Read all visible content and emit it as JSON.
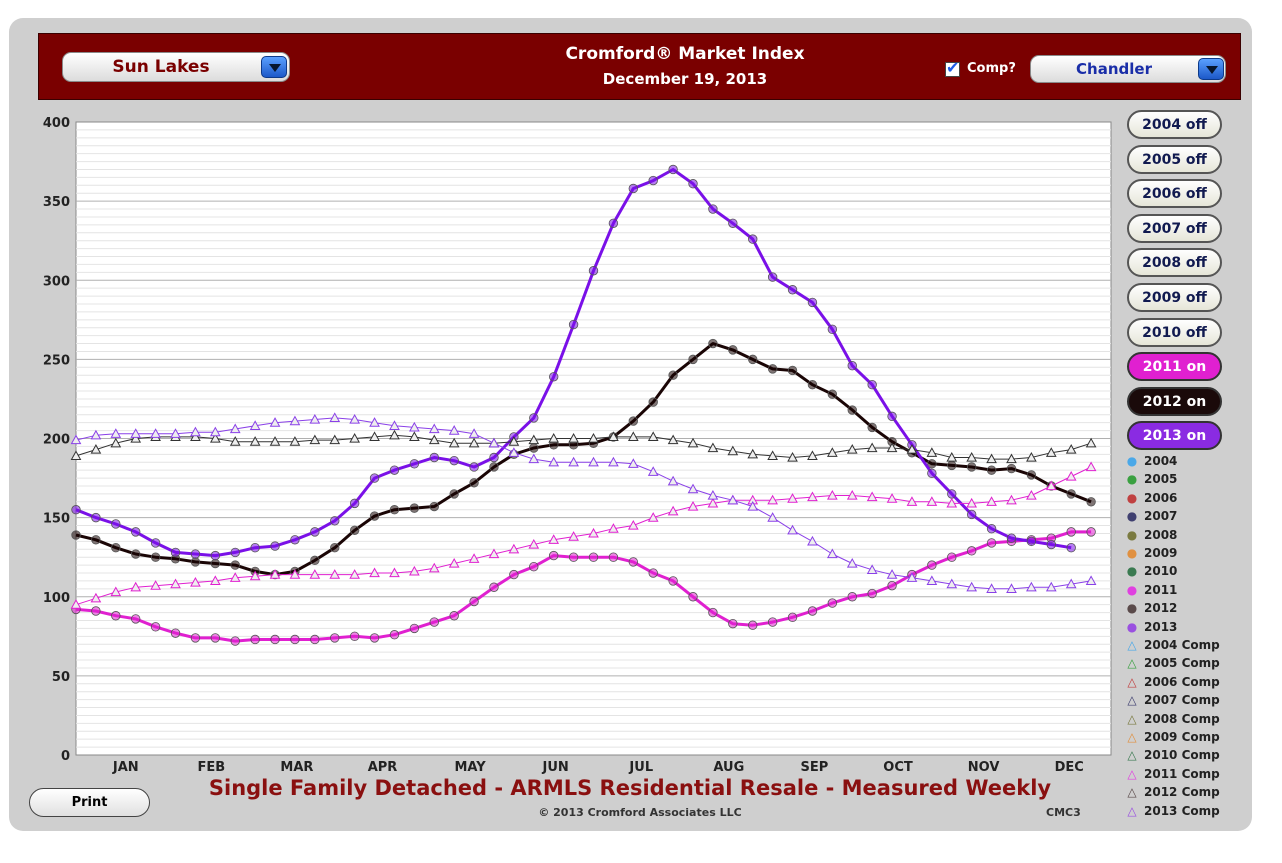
{
  "header": {
    "area_select": "Sun Lakes",
    "title": "Cromford® Market Index",
    "date": "December 19, 2013",
    "comp_label": "Comp?",
    "comp_checked": true,
    "comp_select": "Chandler"
  },
  "year_toggles": [
    {
      "label": "2004 off",
      "state": "off"
    },
    {
      "label": "2005 off",
      "state": "off"
    },
    {
      "label": "2006 off",
      "state": "off"
    },
    {
      "label": "2007 off",
      "state": "off"
    },
    {
      "label": "2008 off",
      "state": "off"
    },
    {
      "label": "2009 off",
      "state": "off"
    },
    {
      "label": "2010 off",
      "state": "off"
    },
    {
      "label": "2011 on",
      "state": "on",
      "color": "#e020d0"
    },
    {
      "label": "2012 on",
      "state": "on",
      "color": "#1a0a0a"
    },
    {
      "label": "2013 on",
      "state": "on",
      "color": "#8a2be2"
    }
  ],
  "legend": [
    {
      "label": "2004",
      "marker": "circle",
      "color": "#4aa8e8"
    },
    {
      "label": "2005",
      "marker": "circle",
      "color": "#3aa040"
    },
    {
      "label": "2006",
      "marker": "circle",
      "color": "#c04040"
    },
    {
      "label": "2007",
      "marker": "circle",
      "color": "#404070"
    },
    {
      "label": "2008",
      "marker": "circle",
      "color": "#7a7a40"
    },
    {
      "label": "2009",
      "marker": "circle",
      "color": "#e09040"
    },
    {
      "label": "2010",
      "marker": "circle",
      "color": "#3a7a50"
    },
    {
      "label": "2011",
      "marker": "circle",
      "color": "#e040e0"
    },
    {
      "label": "2012",
      "marker": "circle",
      "color": "#5a4a4a"
    },
    {
      "label": "2013",
      "marker": "circle",
      "color": "#9a50e0"
    },
    {
      "label": "2004 Comp",
      "marker": "triangle",
      "color": "#4aa8e8"
    },
    {
      "label": "2005 Comp",
      "marker": "triangle",
      "color": "#3aa040"
    },
    {
      "label": "2006 Comp",
      "marker": "triangle",
      "color": "#c04040"
    },
    {
      "label": "2007 Comp",
      "marker": "triangle",
      "color": "#404070"
    },
    {
      "label": "2008 Comp",
      "marker": "triangle",
      "color": "#7a7a40"
    },
    {
      "label": "2009 Comp",
      "marker": "triangle",
      "color": "#e09040"
    },
    {
      "label": "2010 Comp",
      "marker": "triangle",
      "color": "#3a7a50"
    },
    {
      "label": "2011 Comp",
      "marker": "triangle",
      "color": "#e040e0"
    },
    {
      "label": "2012 Comp",
      "marker": "triangle",
      "color": "#5a4a4a"
    },
    {
      "label": "2013 Comp",
      "marker": "triangle",
      "color": "#9a50e0"
    }
  ],
  "footer": {
    "print_label": "Print",
    "chart_subtitle": "Single Family Detached - ARMLS Residential Resale - Measured Weekly",
    "copyright": "© 2013 Cromford Associates LLC",
    "code": "CMC3"
  },
  "chart_data": {
    "type": "line",
    "title": "Cromford® Market Index",
    "subtitle": "Single Family Detached - ARMLS Residential Resale - Measured Weekly",
    "x_axis": {
      "type": "week",
      "min": 1,
      "max": 53,
      "month_labels": [
        "JAN",
        "FEB",
        "MAR",
        "APR",
        "MAY",
        "JUN",
        "JUL",
        "AUG",
        "SEP",
        "OCT",
        "NOV",
        "DEC"
      ],
      "month_label_weeks": [
        3.5,
        7.8,
        12.1,
        16.4,
        20.8,
        25.1,
        29.4,
        33.8,
        38.1,
        42.3,
        46.6,
        50.9
      ]
    },
    "y_axis": {
      "min": 0,
      "max": 400,
      "ticks": [
        0,
        50,
        100,
        150,
        200,
        250,
        300,
        350,
        400
      ]
    },
    "grid": true,
    "series": [
      {
        "name": "2011",
        "color": "#e020d0",
        "width": 3,
        "marker": "circle",
        "values": [
          92,
          91,
          88,
          86,
          81,
          77,
          74,
          74,
          72,
          73,
          73,
          73,
          73,
          74,
          75,
          74,
          76,
          80,
          84,
          88,
          97,
          106,
          114,
          119,
          126,
          125,
          125,
          125,
          122,
          115,
          110,
          100,
          90,
          83,
          82,
          84,
          87,
          91,
          96,
          100,
          102,
          107,
          114,
          120,
          125,
          129,
          134,
          135,
          136,
          137,
          141,
          141
        ]
      },
      {
        "name": "2012",
        "color": "#1a0505",
        "width": 3,
        "marker": "circle",
        "values": [
          139,
          136,
          131,
          127,
          125,
          124,
          122,
          121,
          120,
          116,
          114,
          116,
          123,
          131,
          142,
          151,
          155,
          156,
          157,
          165,
          172,
          182,
          190,
          194,
          196,
          196,
          197,
          201,
          211,
          223,
          240,
          250,
          260,
          256,
          250,
          244,
          243,
          234,
          228,
          218,
          207,
          198,
          191,
          184,
          183,
          182,
          180,
          181,
          177,
          170,
          165,
          160
        ]
      },
      {
        "name": "2013",
        "color": "#7a10e8",
        "width": 3,
        "marker": "circle",
        "values": [
          155,
          150,
          146,
          141,
          134,
          128,
          127,
          126,
          128,
          131,
          132,
          136,
          141,
          148,
          159,
          175,
          180,
          184,
          188,
          186,
          182,
          188,
          201,
          213,
          239,
          272,
          306,
          336,
          358,
          363,
          370,
          361,
          345,
          336,
          326,
          302,
          294,
          286,
          269,
          246,
          234,
          214,
          196,
          178,
          165,
          152,
          143,
          137,
          135,
          133,
          131
        ]
      },
      {
        "name": "2011 Comp",
        "color": "#e020d0",
        "width": 1,
        "marker": "triangle",
        "values": [
          95,
          99,
          103,
          106,
          107,
          108,
          109,
          110,
          112,
          113,
          114,
          114,
          114,
          114,
          114,
          115,
          115,
          116,
          118,
          121,
          124,
          127,
          130,
          133,
          136,
          138,
          140,
          143,
          145,
          150,
          154,
          157,
          159,
          161,
          161,
          161,
          162,
          163,
          164,
          164,
          163,
          162,
          160,
          160,
          159,
          159,
          160,
          161,
          164,
          170,
          176,
          182
        ]
      },
      {
        "name": "2012 Comp",
        "color": "#333333",
        "width": 1,
        "marker": "triangle",
        "values": [
          189,
          193,
          197,
          200,
          201,
          201,
          201,
          200,
          198,
          198,
          198,
          198,
          199,
          199,
          200,
          201,
          202,
          201,
          199,
          197,
          197,
          197,
          198,
          199,
          200,
          200,
          200,
          201,
          201,
          201,
          199,
          197,
          194,
          192,
          190,
          189,
          188,
          189,
          191,
          193,
          194,
          194,
          193,
          191,
          188,
          188,
          187,
          187,
          188,
          191,
          193,
          197
        ]
      },
      {
        "name": "2013 Comp",
        "color": "#8a40e8",
        "width": 1,
        "marker": "triangle",
        "values": [
          199,
          202,
          203,
          203,
          203,
          203,
          204,
          204,
          206,
          208,
          210,
          211,
          212,
          213,
          212,
          210,
          208,
          207,
          206,
          205,
          203,
          197,
          191,
          187,
          185,
          185,
          185,
          185,
          184,
          179,
          173,
          168,
          164,
          161,
          157,
          150,
          142,
          135,
          127,
          121,
          117,
          114,
          112,
          110,
          108,
          106,
          105,
          105,
          106,
          106,
          108,
          110
        ]
      }
    ]
  }
}
